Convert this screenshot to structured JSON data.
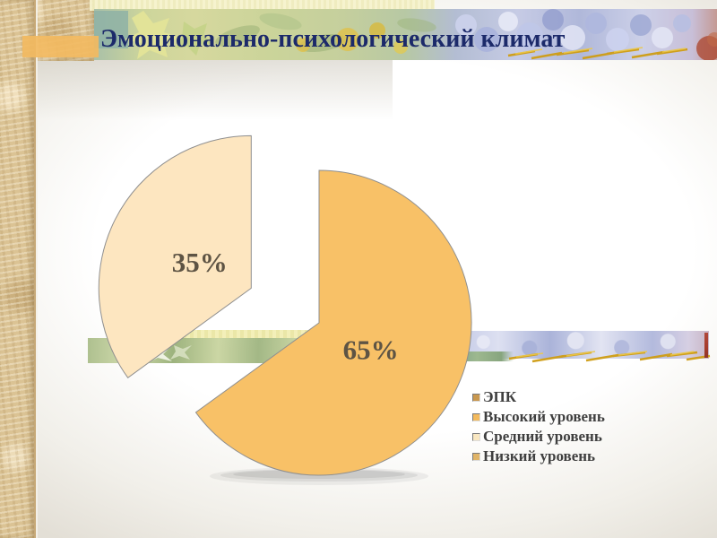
{
  "slide": {
    "title": "Эмоционально-психологический климат"
  },
  "chart_data": {
    "type": "pie",
    "title": "ЭПК",
    "slices": [
      {
        "name": "Высокий уровень",
        "value": 65,
        "label": "65%",
        "color": "#f8c167",
        "exploded": false
      },
      {
        "name": "Средний уровень",
        "value": 35,
        "label": "35%",
        "color": "#fde6c0",
        "exploded": true
      }
    ],
    "legend": [
      {
        "label": "ЭПК",
        "color": "#c9984f"
      },
      {
        "label": "Высокий уровень",
        "color": "#f3ba5e"
      },
      {
        "label": "Средний уровень",
        "color": "#f9e7c1"
      },
      {
        "label": "Низкий уровень",
        "color": "#e0b468"
      }
    ],
    "legend_position": "right",
    "start_angle_deg": 0,
    "direction": "clockwise",
    "label_color": "#5e5444",
    "outline_color": "#8f8f8f"
  },
  "theme": {
    "title_color": "#1c2a6a",
    "legend_text_color": "#3f3f3f",
    "left_strip_tan": "#dbc394",
    "accent_bar_orange": "#f2ba61",
    "band_yellow": "#f2eeb6",
    "band_green": "#aec08f",
    "band_lavender": "#c2c8e6",
    "wheat_gold": "#cf9d14",
    "red_accent": "#a63c2c",
    "background_edge": "#e3dfd6"
  }
}
